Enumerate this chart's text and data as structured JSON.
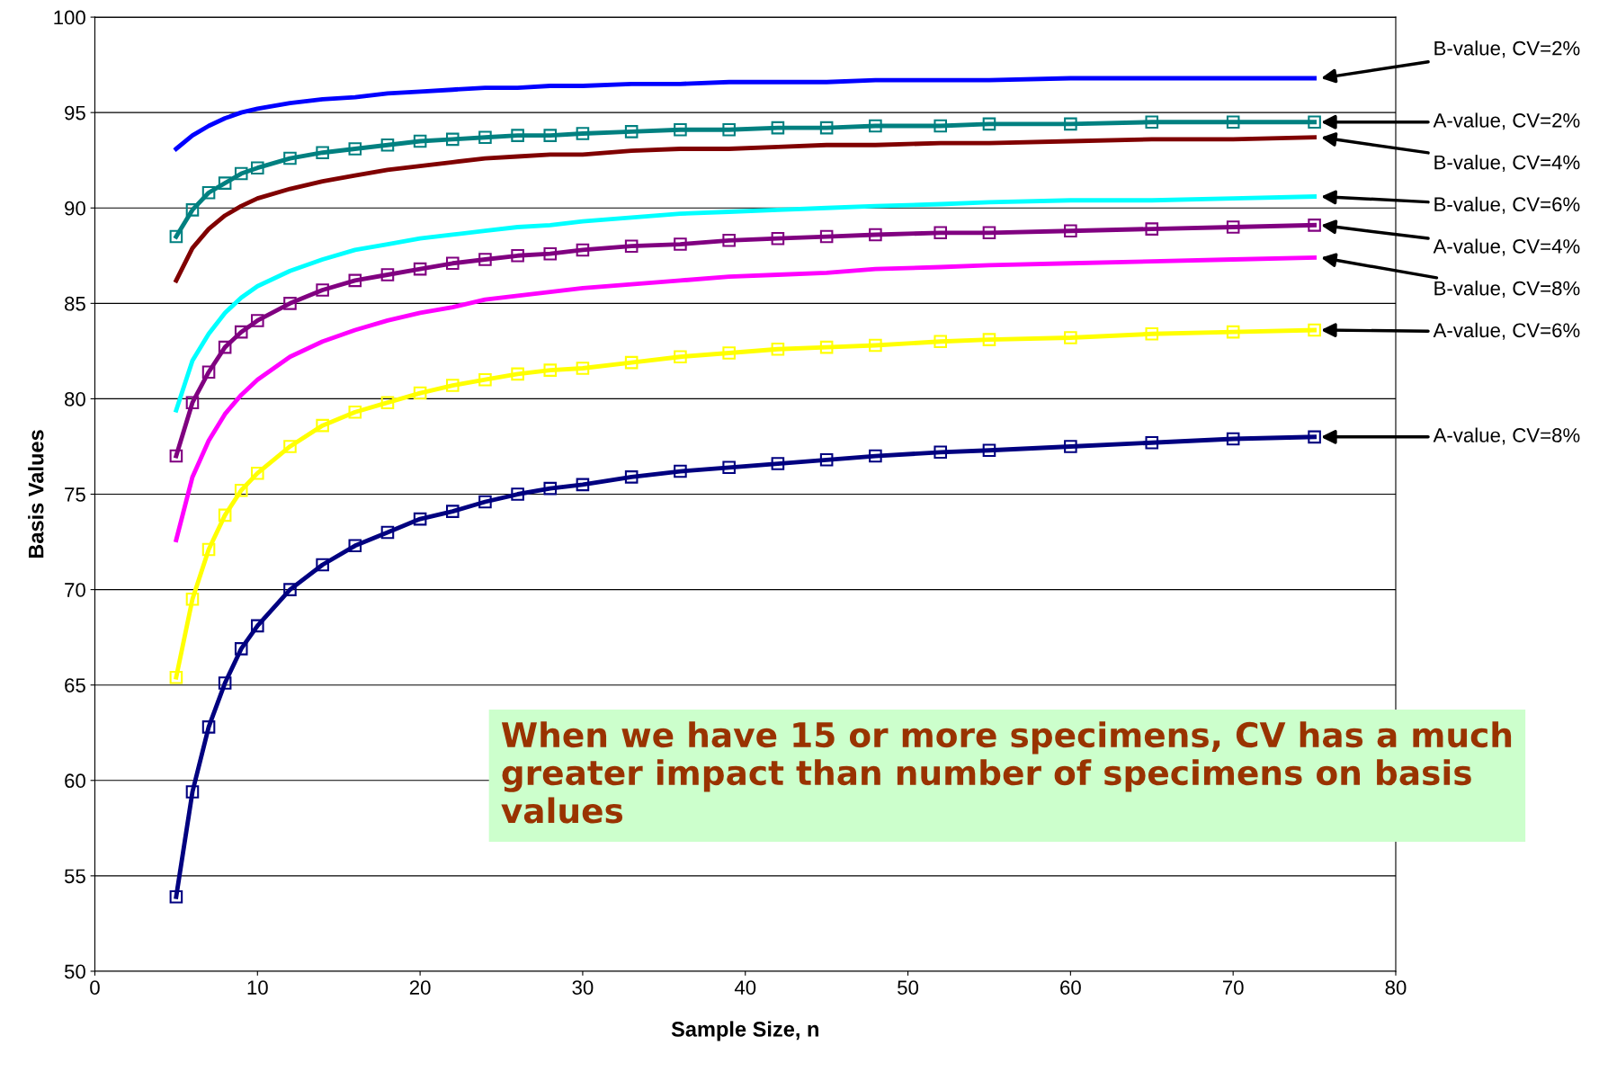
{
  "chart_data": {
    "type": "line",
    "xlabel": "Sample Size, n",
    "ylabel": "Basis Values",
    "xlim": [
      0,
      80
    ],
    "ylim": [
      50,
      100
    ],
    "xticks": [
      0,
      10,
      20,
      30,
      40,
      50,
      60,
      70,
      80
    ],
    "yticks": [
      50,
      55,
      60,
      65,
      70,
      75,
      80,
      85,
      90,
      95,
      100
    ],
    "grid": "y",
    "legend": false,
    "x": [
      5,
      6,
      7,
      8,
      9,
      10,
      12,
      14,
      16,
      18,
      20,
      22,
      24,
      26,
      28,
      30,
      33,
      36,
      39,
      42,
      45,
      48,
      52,
      55,
      60,
      65,
      70,
      75
    ],
    "series": [
      {
        "name": "B-value, CV=2%",
        "color": "#0000ff",
        "marker": "none",
        "values": [
          93.1,
          93.8,
          94.3,
          94.7,
          95.0,
          95.2,
          95.5,
          95.7,
          95.8,
          96.0,
          96.1,
          96.2,
          96.3,
          96.3,
          96.4,
          96.4,
          96.5,
          96.5,
          96.6,
          96.6,
          96.6,
          96.7,
          96.7,
          96.7,
          96.8,
          96.8,
          96.8,
          96.8
        ]
      },
      {
        "name": "A-value, CV=2%",
        "color": "#008080",
        "marker": "square",
        "values": [
          88.5,
          89.9,
          90.8,
          91.3,
          91.8,
          92.1,
          92.6,
          92.9,
          93.1,
          93.3,
          93.5,
          93.6,
          93.7,
          93.8,
          93.8,
          93.9,
          94.0,
          94.1,
          94.1,
          94.2,
          94.2,
          94.3,
          94.3,
          94.4,
          94.4,
          94.5,
          94.5,
          94.5
        ]
      },
      {
        "name": "B-value, CV=4%",
        "color": "#800000",
        "marker": "none",
        "values": [
          86.2,
          87.9,
          88.9,
          89.6,
          90.1,
          90.5,
          91.0,
          91.4,
          91.7,
          92.0,
          92.2,
          92.4,
          92.6,
          92.7,
          92.8,
          92.8,
          93.0,
          93.1,
          93.1,
          93.2,
          93.3,
          93.3,
          93.4,
          93.4,
          93.5,
          93.6,
          93.6,
          93.7
        ]
      },
      {
        "name": "B-value, CV=6%",
        "color": "#00ffff",
        "marker": "none",
        "values": [
          79.4,
          82.0,
          83.4,
          84.5,
          85.3,
          85.9,
          86.7,
          87.3,
          87.8,
          88.1,
          88.4,
          88.6,
          88.8,
          89.0,
          89.1,
          89.3,
          89.5,
          89.7,
          89.8,
          89.9,
          90.0,
          90.1,
          90.2,
          90.3,
          90.4,
          90.4,
          90.5,
          90.6
        ]
      },
      {
        "name": "A-value, CV=4%",
        "color": "#800080",
        "marker": "square",
        "values": [
          77.0,
          79.8,
          81.4,
          82.7,
          83.5,
          84.1,
          85.0,
          85.7,
          86.2,
          86.5,
          86.8,
          87.1,
          87.3,
          87.5,
          87.6,
          87.8,
          88.0,
          88.1,
          88.3,
          88.4,
          88.5,
          88.6,
          88.7,
          88.7,
          88.8,
          88.9,
          89.0,
          89.1
        ]
      },
      {
        "name": "B-value, CV=8%",
        "color": "#ff00ff",
        "marker": "none",
        "values": [
          72.6,
          75.9,
          77.8,
          79.2,
          80.2,
          81.0,
          82.2,
          83.0,
          83.6,
          84.1,
          84.5,
          84.8,
          85.2,
          85.4,
          85.6,
          85.8,
          86.0,
          86.2,
          86.4,
          86.5,
          86.6,
          86.8,
          86.9,
          87.0,
          87.1,
          87.2,
          87.3,
          87.4
        ]
      },
      {
        "name": "A-value, CV=6%",
        "color": "#ffff00",
        "marker": "square",
        "values": [
          65.4,
          69.5,
          72.1,
          73.9,
          75.2,
          76.1,
          77.5,
          78.6,
          79.3,
          79.8,
          80.3,
          80.7,
          81.0,
          81.3,
          81.5,
          81.6,
          81.9,
          82.2,
          82.4,
          82.6,
          82.7,
          82.8,
          83.0,
          83.1,
          83.2,
          83.4,
          83.5,
          83.6
        ]
      },
      {
        "name": "A-value, CV=8%",
        "color": "#000080",
        "marker": "square",
        "values": [
          53.9,
          59.4,
          62.8,
          65.1,
          66.9,
          68.1,
          70.0,
          71.3,
          72.3,
          73.0,
          73.7,
          74.1,
          74.6,
          75.0,
          75.3,
          75.5,
          75.9,
          76.2,
          76.4,
          76.6,
          76.8,
          77.0,
          77.2,
          77.3,
          77.5,
          77.7,
          77.9,
          78.0
        ]
      }
    ],
    "annotations": [
      "When we have 15 or more specimens, CV has a much greater impact than number of specimens on basis values"
    ]
  }
}
